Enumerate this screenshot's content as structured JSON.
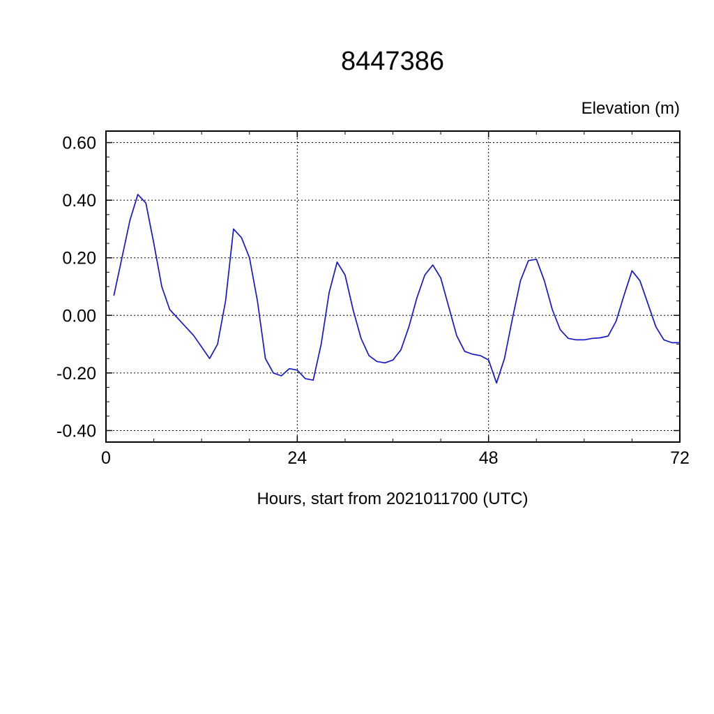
{
  "figure": {
    "background_color": "#ffffff",
    "frame_color": "#000000",
    "grid_color": "#000000"
  },
  "chart_data": {
    "type": "line",
    "title": "8447386",
    "top_right_label": "Elevation (m)",
    "xlabel": "Hours, start from 2021011700 (UTC)",
    "ylabel": "Elevation (m)",
    "xlim": [
      0,
      72
    ],
    "ylim": [
      -0.44,
      0.64
    ],
    "x_minor_interval": 6,
    "y_minor_interval": 0.05,
    "x_gridlines": [
      24,
      48
    ],
    "grid_dashed": true,
    "legend": "none",
    "line_color": "#1515cc",
    "xticks": [
      {
        "v": 0,
        "label": "0"
      },
      {
        "v": 24,
        "label": "24"
      },
      {
        "v": 48,
        "label": "48"
      },
      {
        "v": 72,
        "label": "72"
      }
    ],
    "yticks": [
      {
        "v": 0.6,
        "label": "0.60"
      },
      {
        "v": 0.4,
        "label": "0.40"
      },
      {
        "v": 0.2,
        "label": "0.20"
      },
      {
        "v": 0.0,
        "label": "0.00"
      },
      {
        "v": -0.2,
        "label": "-0.20"
      },
      {
        "v": -0.4,
        "label": "-0.40"
      }
    ],
    "series": [
      {
        "name": "elevation",
        "hours": [
          1,
          2,
          3,
          4,
          5,
          6,
          7,
          8,
          9,
          10,
          11,
          12,
          13,
          14,
          15,
          16,
          17,
          18,
          19,
          20,
          21,
          22,
          23,
          24,
          25,
          26,
          27,
          28,
          29,
          30,
          31,
          32,
          33,
          34,
          35,
          36,
          37,
          38,
          39,
          40,
          41,
          42,
          43,
          44,
          45,
          46,
          47,
          48,
          49,
          50,
          51,
          52,
          53,
          54,
          55,
          56,
          57,
          58,
          59,
          60,
          61,
          62,
          63,
          64,
          65,
          66,
          67,
          68,
          69,
          70,
          71,
          72
        ],
        "values": [
          0.07,
          0.2,
          0.33,
          0.42,
          0.39,
          0.25,
          0.1,
          0.02,
          -0.01,
          -0.04,
          -0.07,
          -0.11,
          -0.15,
          -0.1,
          0.05,
          0.3,
          0.27,
          0.2,
          0.05,
          -0.15,
          -0.2,
          -0.21,
          -0.185,
          -0.19,
          -0.22,
          -0.225,
          -0.1,
          0.08,
          0.185,
          0.14,
          0.02,
          -0.08,
          -0.14,
          -0.16,
          -0.165,
          -0.155,
          -0.12,
          -0.04,
          0.06,
          0.14,
          0.175,
          0.13,
          0.03,
          -0.07,
          -0.125,
          -0.135,
          -0.14,
          -0.155,
          -0.235,
          -0.15,
          -0.01,
          0.12,
          0.19,
          0.195,
          0.12,
          0.02,
          -0.05,
          -0.08,
          -0.085,
          -0.085,
          -0.08,
          -0.078,
          -0.072,
          -0.02,
          0.07,
          0.155,
          0.12,
          0.04,
          -0.04,
          -0.085,
          -0.095,
          -0.095
        ]
      }
    ]
  }
}
